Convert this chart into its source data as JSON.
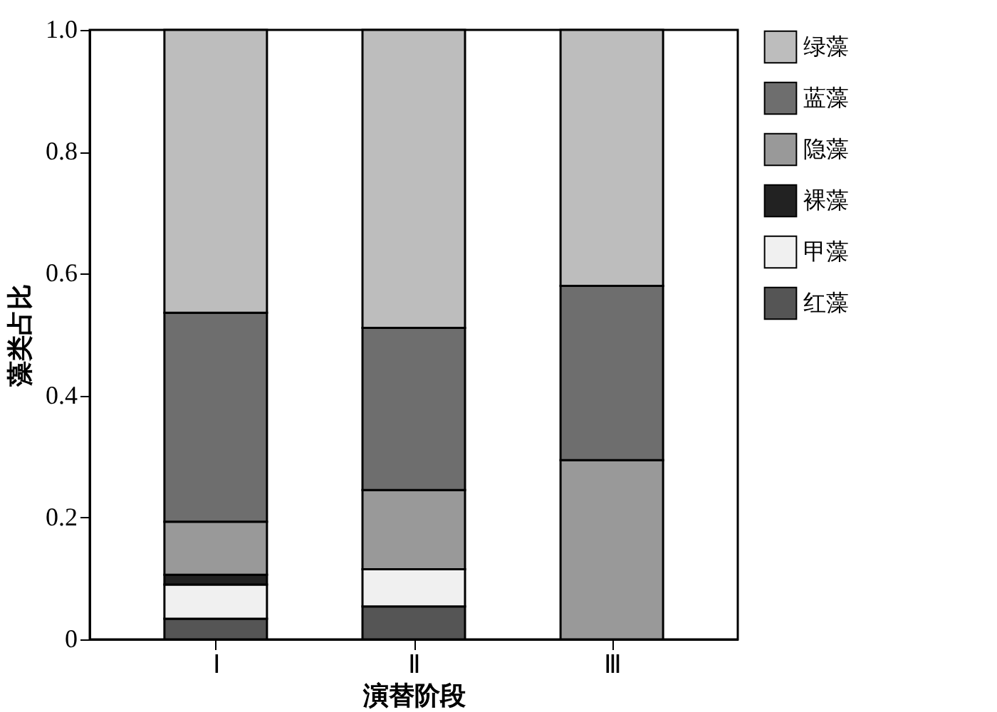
{
  "chart_data": {
    "type": "bar",
    "stacked": true,
    "xlabel": "演替阶段",
    "ylabel": "藻类占比",
    "categories": [
      "Ⅰ",
      "Ⅱ",
      "Ⅲ"
    ],
    "series": [
      {
        "name": "红藻",
        "color": "#555555",
        "values": [
          0.034,
          0.054,
          0
        ]
      },
      {
        "name": "甲藻",
        "color": "#f0f0f0",
        "values": [
          0.056,
          0.061,
          0
        ]
      },
      {
        "name": "裸藻",
        "color": "#222222",
        "values": [
          0.016,
          0,
          0
        ]
      },
      {
        "name": "隐藻",
        "color": "#999999",
        "values": [
          0.087,
          0.13,
          0.294
        ]
      },
      {
        "name": "蓝藻",
        "color": "#6e6e6e",
        "values": [
          0.343,
          0.266,
          0.286
        ]
      },
      {
        "name": "绿藻",
        "color": "#bdbdbd",
        "values": [
          0.464,
          0.489,
          0.42
        ]
      }
    ],
    "ylim": [
      0,
      1
    ],
    "yticks": [
      {
        "value": 0,
        "label": "0"
      },
      0.2,
      0.4,
      0.6,
      0.8,
      {
        "value": 1,
        "label": "1.0"
      }
    ],
    "grid": false,
    "legend": "right"
  }
}
